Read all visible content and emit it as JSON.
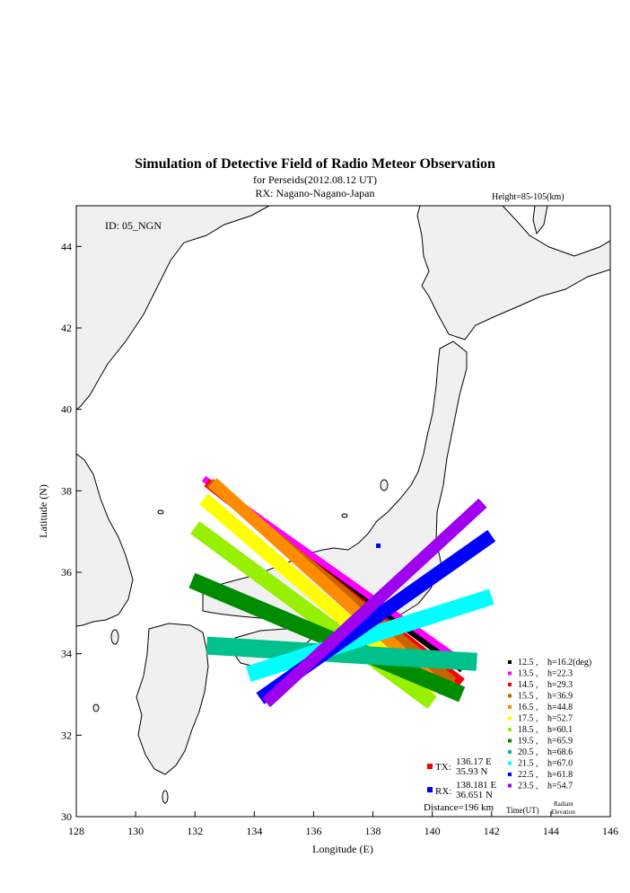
{
  "header": {
    "title": "Simulation of Detective Field of Radio Meteor Observation",
    "subtitle": "for Perseids(2012.08.12 UT)",
    "rx_line": "RX: Nagano-Nagano-Japan",
    "height_note": "Height=85-105(km)"
  },
  "map": {
    "id_label": "ID: 05_NGN",
    "xlabel": "Longitude (E)",
    "ylabel": "Latitude (N)",
    "xticks": [
      "128",
      "130",
      "132",
      "134",
      "136",
      "138",
      "140",
      "142",
      "144",
      "146"
    ],
    "yticks": [
      "30",
      "32",
      "34",
      "36",
      "38",
      "40",
      "42",
      "44"
    ],
    "xlim": [
      128,
      146
    ],
    "ylim": [
      30,
      45
    ],
    "land_color": "#f0f0f0",
    "tx": {
      "label": "TX:",
      "lon": "136.17 E",
      "lat": "35.93 N",
      "lon_value": 136.17,
      "lat_value": 35.93,
      "color": "#ff0000"
    },
    "rx": {
      "label": "RX:",
      "lon": "138.181 E",
      "lat": "36.651 N",
      "lon_value": 138.181,
      "lat_value": 36.651,
      "color": "#0000ff"
    },
    "distance": "Distance=196 km"
  },
  "legend": {
    "time_header": "Time(UT)",
    "elev_header_1": "Radiant",
    "elev_header_2": "Elevation",
    "entries": [
      {
        "time": "12.5 ,",
        "elev": "h=16.2(deg)",
        "color": "#000000"
      },
      {
        "time": "13.5 ,",
        "elev": "h=22.3",
        "color": "#ff00ff"
      },
      {
        "time": "14.5 ,",
        "elev": "h=29.3",
        "color": "#ff0000"
      },
      {
        "time": "15.5 ,",
        "elev": "h=36.9",
        "color": "#c86400"
      },
      {
        "time": "16.5 ,",
        "elev": "h=44.8",
        "color": "#ff8c00"
      },
      {
        "time": "17.5 ,",
        "elev": "h=52.7",
        "color": "#ffff00"
      },
      {
        "time": "18.5 ,",
        "elev": "h=60.1",
        "color": "#96f000"
      },
      {
        "time": "19.5 ,",
        "elev": "h=65.9",
        "color": "#008c00"
      },
      {
        "time": "20.5 ,",
        "elev": "h=68.6",
        "color": "#00c08c"
      },
      {
        "time": "21.5 ,",
        "elev": "h=67.0",
        "color": "#00ffff"
      },
      {
        "time": "22.5 ,",
        "elev": "h=61.8",
        "color": "#0000ff"
      },
      {
        "time": "23.5 ,",
        "elev": "h=54.7",
        "color": "#a000f0"
      }
    ]
  },
  "bands": [
    {
      "p1": [
        132.3,
        38.3
      ],
      "p2": [
        141.0,
        33.6
      ],
      "width": 0.14,
      "color": "#000000"
    },
    {
      "p1": [
        132.3,
        38.3
      ],
      "p2": [
        141.2,
        33.7
      ],
      "width": 0.16,
      "color": "#ff00ff"
    },
    {
      "p1": [
        132.4,
        38.2
      ],
      "p2": [
        141.0,
        33.3
      ],
      "width": 0.22,
      "color": "#ff0000"
    },
    {
      "p1": [
        132.5,
        38.2
      ],
      "p2": [
        140.7,
        33.3
      ],
      "width": 0.26,
      "color": "#c86400"
    },
    {
      "p1": [
        132.6,
        38.2
      ],
      "p2": [
        140.4,
        33.1
      ],
      "width": 0.3,
      "color": "#ff8c00"
    },
    {
      "p1": [
        132.3,
        37.8
      ],
      "p2": [
        140.0,
        33.0
      ],
      "width": 0.34,
      "color": "#ffff00"
    },
    {
      "p1": [
        132.0,
        37.1
      ],
      "p2": [
        140.0,
        32.8
      ],
      "width": 0.38,
      "color": "#96f000"
    },
    {
      "p1": [
        131.9,
        35.8
      ],
      "p2": [
        141.0,
        33.0
      ],
      "width": 0.4,
      "color": "#008c00"
    },
    {
      "p1": [
        132.4,
        34.2
      ],
      "p2": [
        141.5,
        33.8
      ],
      "width": 0.44,
      "color": "#00c08c"
    },
    {
      "p1": [
        133.8,
        33.5
      ],
      "p2": [
        142.0,
        35.4
      ],
      "width": 0.4,
      "color": "#00ffff"
    },
    {
      "p1": [
        134.2,
        32.9
      ],
      "p2": [
        142.0,
        36.9
      ],
      "width": 0.34,
      "color": "#0000ff"
    },
    {
      "p1": [
        134.4,
        32.8
      ],
      "p2": [
        141.7,
        37.7
      ],
      "width": 0.3,
      "color": "#a000f0"
    }
  ]
}
